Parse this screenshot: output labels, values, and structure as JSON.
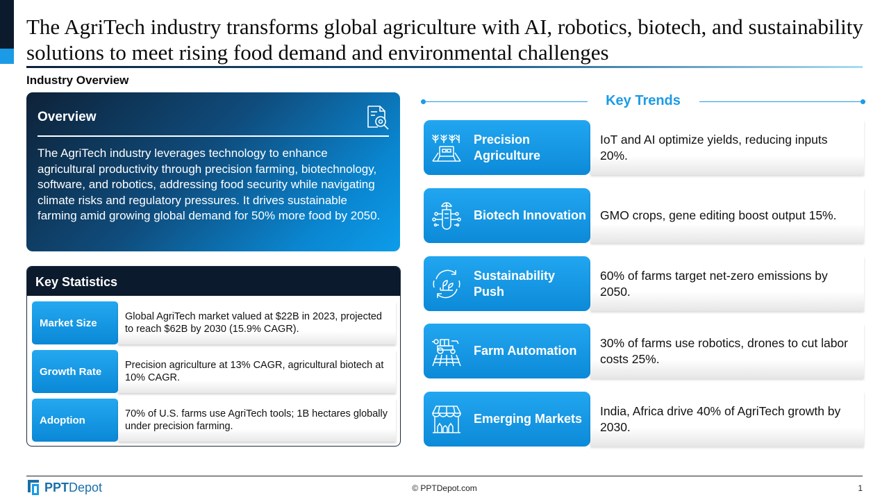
{
  "slide": {
    "title": "The AgriTech industry transforms global agriculture with AI, robotics, biotech, and sustainability solutions to meet rising food demand and environmental challenges",
    "section_label": "Industry Overview"
  },
  "overview": {
    "title": "Overview",
    "icon": "document-magnifier-icon",
    "text": "The AgriTech industry leverages technology to enhance agricultural productivity through precision farming, biotechnology, software, and robotics, addressing food security while navigating climate risks and regulatory pressures. It drives sustainable farming amid growing global demand for 50% more food by 2050."
  },
  "key_statistics": {
    "title": "Key Statistics",
    "rows": [
      {
        "label": "Market Size",
        "text": "Global AgriTech market valued at $22B in 2023, projected to reach $62B by 2030 (15.9% CAGR)."
      },
      {
        "label": "Growth Rate",
        "text": "Precision agriculture at 13% CAGR, agricultural biotech at 10% CAGR."
      },
      {
        "label": "Adoption",
        "text": "70% of U.S. farms use AgriTech tools; 1B hectares globally under precision farming."
      }
    ]
  },
  "key_trends": {
    "title": "Key Trends",
    "items": [
      {
        "label": "Precision Agriculture",
        "icon": "crop-field-icon",
        "text": "IoT and AI optimize yields, reducing inputs 20%."
      },
      {
        "label": "Biotech Innovation",
        "icon": "plant-circuit-icon",
        "text": "GMO crops, gene editing boost output 15%."
      },
      {
        "label": "Sustainability Push",
        "icon": "eco-cycle-icon",
        "text": "60% of farms target net-zero emissions by 2050."
      },
      {
        "label": "Farm Automation",
        "icon": "tractor-icon",
        "text": "30% of farms use robotics, drones to cut labor costs 25%."
      },
      {
        "label": "Emerging Markets",
        "icon": "market-stall-icon",
        "text": "India, Africa drive 40% of AgriTech growth by 2030."
      }
    ]
  },
  "footer": {
    "logo_bold": "PPT",
    "logo_regular": "Depot",
    "copyright": "© PPTDepot.com",
    "page_number": "1"
  },
  "colors": {
    "accent_blue": "#1b9be6",
    "dark_navy": "#0b1a2c"
  }
}
